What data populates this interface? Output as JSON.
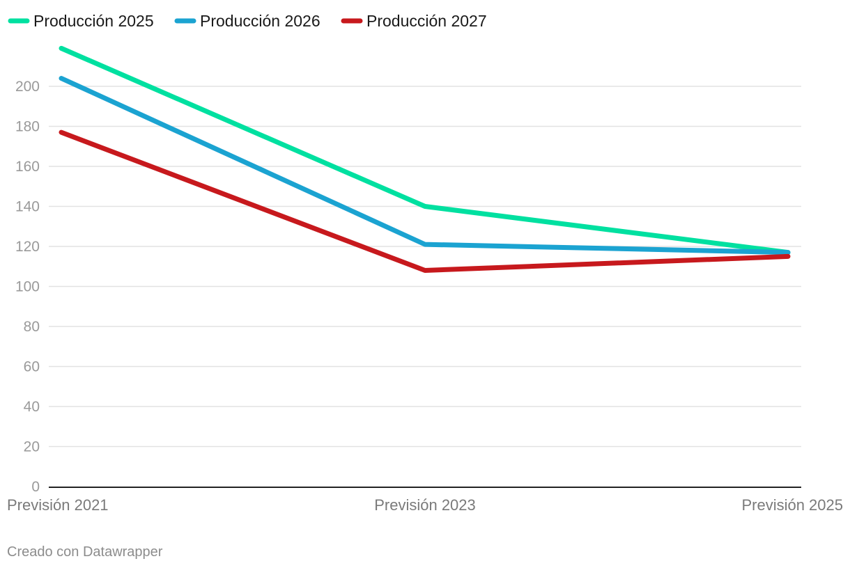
{
  "chart_data": {
    "type": "line",
    "categories": [
      "Previsión 2021",
      "Previsión 2023",
      "Previsión 2025"
    ],
    "series": [
      {
        "name": "Producción 2025",
        "color": "#00e0a0",
        "values": [
          219,
          140,
          117
        ]
      },
      {
        "name": "Producción 2026",
        "color": "#1ba3d1",
        "values": [
          204,
          121,
          117
        ]
      },
      {
        "name": "Producción 2027",
        "color": "#c7191d",
        "values": [
          177,
          108,
          115
        ]
      }
    ],
    "yticks": [
      0,
      20,
      40,
      60,
      80,
      100,
      120,
      140,
      160,
      180,
      200
    ],
    "ylim": [
      0,
      200
    ],
    "grid": true,
    "legend": "top-left",
    "credit": "Creado con Datawrapper"
  }
}
